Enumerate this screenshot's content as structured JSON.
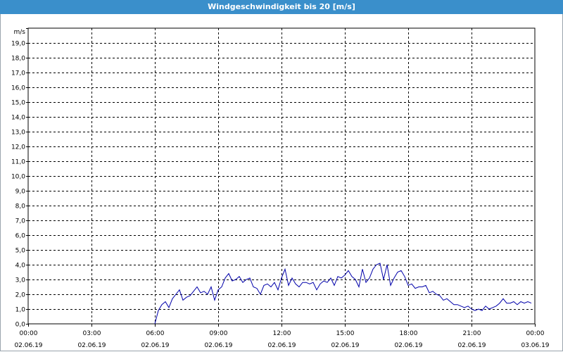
{
  "window": {
    "title": "Windgeschwindigkeit bis 20 [m/s]"
  },
  "chart_data": {
    "type": "line",
    "title": "Windgeschwindigkeit bis 20 [m/s]",
    "ylabel": "m/s",
    "xlabel": "",
    "grid": true,
    "ylim": [
      0,
      20
    ],
    "xlim_hours": [
      0,
      24
    ],
    "y_ticks": [
      "0,0",
      "1,0",
      "2,0",
      "3,0",
      "4,0",
      "5,0",
      "6,0",
      "7,0",
      "8,0",
      "9,0",
      "10,0",
      "11,0",
      "12,0",
      "13,0",
      "14,0",
      "15,0",
      "16,0",
      "17,0",
      "18,0",
      "19,0"
    ],
    "x_ticks": [
      {
        "time": "00:00",
        "date": "02.06.19"
      },
      {
        "time": "03:00",
        "date": "02.06.19"
      },
      {
        "time": "06:00",
        "date": "02.06.19"
      },
      {
        "time": "09:00",
        "date": "02.06.19"
      },
      {
        "time": "12:00",
        "date": "02.06.19"
      },
      {
        "time": "15:00",
        "date": "02.06.19"
      },
      {
        "time": "18:00",
        "date": "02.06.19"
      },
      {
        "time": "21:00",
        "date": "02.06.19"
      },
      {
        "time": "00:00",
        "date": "03.06.19"
      }
    ],
    "colors": {
      "line": "#0000aa",
      "grid": "#000000"
    },
    "series": [
      {
        "x": [
          "06:00",
          "06:10",
          "06:20",
          "06:30",
          "06:40",
          "06:50",
          "07:00",
          "07:10",
          "07:20",
          "07:30",
          "07:40",
          "07:50",
          "08:00",
          "08:10",
          "08:20",
          "08:30",
          "08:40",
          "08:50",
          "09:00",
          "09:10",
          "09:20",
          "09:30",
          "09:40",
          "09:50",
          "10:00",
          "10:10",
          "10:20",
          "10:30",
          "10:40",
          "10:50",
          "11:00",
          "11:10",
          "11:20",
          "11:30",
          "11:40",
          "11:50",
          "12:00",
          "12:10",
          "12:20",
          "12:30",
          "12:40",
          "12:50",
          "13:00",
          "13:10",
          "13:20",
          "13:30",
          "13:40",
          "13:50",
          "14:00",
          "14:10",
          "14:20",
          "14:30",
          "14:40",
          "14:50",
          "15:00",
          "15:10",
          "15:20",
          "15:30",
          "15:40",
          "15:50",
          "16:00",
          "16:10",
          "16:20",
          "16:30",
          "16:40",
          "16:50",
          "17:00",
          "17:10",
          "17:20",
          "17:30",
          "17:40",
          "17:50",
          "18:00",
          "18:10",
          "18:20",
          "18:30",
          "18:40",
          "18:50",
          "19:00",
          "19:10",
          "19:20",
          "19:30",
          "19:40",
          "19:50",
          "20:00",
          "20:10",
          "20:20",
          "20:30",
          "20:40",
          "20:50",
          "21:00",
          "21:10",
          "21:20",
          "21:30",
          "21:40",
          "21:50",
          "22:00",
          "22:10",
          "22:20",
          "22:30",
          "22:40",
          "22:50",
          "23:00",
          "23:10",
          "23:20",
          "23:30",
          "23:40",
          "23:50"
        ],
        "values": [
          0.0,
          0.9,
          1.3,
          1.5,
          1.1,
          1.7,
          2.0,
          2.3,
          1.6,
          1.8,
          1.9,
          2.2,
          2.5,
          2.1,
          2.2,
          2.0,
          2.5,
          1.6,
          2.3,
          2.5,
          3.1,
          3.4,
          2.9,
          3.0,
          3.2,
          2.8,
          3.0,
          3.1,
          2.5,
          2.4,
          2.0,
          2.6,
          2.7,
          2.5,
          2.8,
          2.3,
          3.1,
          3.7,
          2.6,
          3.1,
          2.7,
          2.5,
          2.8,
          2.8,
          2.7,
          2.8,
          2.3,
          2.7,
          2.9,
          2.8,
          3.1,
          2.6,
          3.2,
          3.1,
          3.3,
          3.6,
          3.2,
          3.0,
          2.5,
          3.7,
          2.8,
          3.1,
          3.7,
          4.0,
          4.1,
          3.0,
          4.0,
          2.6,
          3.1,
          3.5,
          3.6,
          3.2,
          2.6,
          2.7,
          2.4,
          2.5,
          2.5,
          2.6,
          2.1,
          2.2,
          2.0,
          1.9,
          1.6,
          1.7,
          1.5,
          1.3,
          1.3,
          1.2,
          1.1,
          1.2,
          1.0,
          0.9,
          1.0,
          0.9,
          1.2,
          1.0,
          1.1,
          1.2,
          1.4,
          1.7,
          1.4,
          1.4,
          1.5,
          1.3,
          1.5,
          1.4,
          1.5,
          1.4
        ]
      }
    ]
  }
}
